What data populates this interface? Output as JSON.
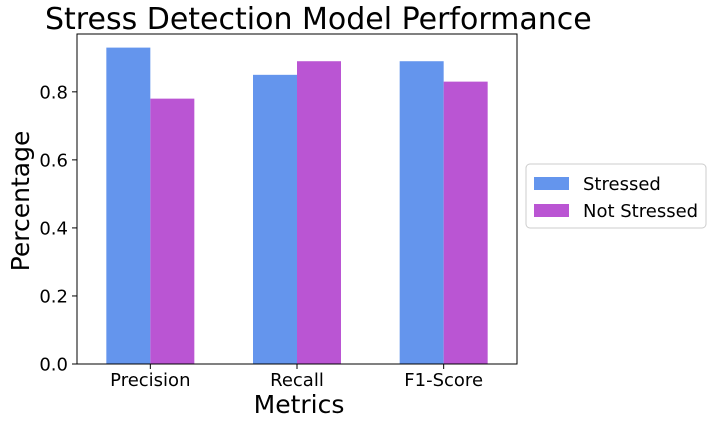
{
  "chart_data": {
    "type": "bar",
    "title": "Stress Detection Model Performance",
    "xlabel": "Metrics",
    "ylabel": "Percentage",
    "categories": [
      "Precision",
      "Recall",
      "F1-Score"
    ],
    "series": [
      {
        "name": "Stressed",
        "values": [
          0.93,
          0.85,
          0.89
        ],
        "color": "#6495ED"
      },
      {
        "name": "Not Stressed",
        "values": [
          0.78,
          0.89,
          0.83
        ],
        "color": "#BA55D3"
      }
    ],
    "ylim": [
      0,
      0.97
    ],
    "yticks": [
      0.0,
      0.2,
      0.4,
      0.6,
      0.8
    ],
    "ytick_labels": [
      "0.0",
      "0.2",
      "0.4",
      "0.6",
      "0.8"
    ],
    "grid": false,
    "legend_position": "right, outside plot"
  }
}
